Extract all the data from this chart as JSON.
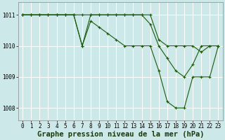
{
  "background_color": "#cce8e8",
  "grid_color": "#ffffff",
  "line_color": "#1a5c0a",
  "xlabel": "Graphe pression niveau de la mer (hPa)",
  "ylim": [
    1007.6,
    1011.4
  ],
  "xlim": [
    -0.5,
    23.5
  ],
  "yticks": [
    1008,
    1009,
    1010,
    1011
  ],
  "xticks": [
    0,
    1,
    2,
    3,
    4,
    5,
    6,
    7,
    8,
    9,
    10,
    11,
    12,
    13,
    14,
    15,
    16,
    17,
    18,
    19,
    20,
    21,
    22,
    23
  ],
  "series": [
    [
      1011.0,
      1011.0,
      1011.0,
      1011.0,
      1011.0,
      1011.0,
      1011.0,
      1011.0,
      1011.0,
      1011.0,
      1011.0,
      1011.0,
      1011.0,
      1011.0,
      1011.0,
      1011.0,
      1010.2,
      1010.0,
      1010.0,
      1010.0,
      1010.0,
      1009.8,
      1010.0,
      1010.0
    ],
    [
      1011.0,
      1011.0,
      1011.0,
      1011.0,
      1011.0,
      1011.0,
      1011.0,
      1010.0,
      1011.0,
      1011.0,
      1011.0,
      1011.0,
      1011.0,
      1011.0,
      1011.0,
      1010.7,
      1010.0,
      1009.6,
      1009.2,
      1009.0,
      1009.4,
      1010.0,
      1010.0,
      1010.0
    ],
    [
      1011.0,
      1011.0,
      1011.0,
      1011.0,
      1011.0,
      1011.0,
      1011.0,
      1010.0,
      1010.8,
      1010.6,
      1010.4,
      1010.2,
      1010.0,
      1010.0,
      1010.0,
      1010.0,
      1009.2,
      1008.2,
      1008.0,
      1008.0,
      1009.0,
      1009.0,
      1009.0,
      1010.0
    ]
  ],
  "tick_fontsize": 5.5,
  "label_fontsize": 7.5,
  "linewidth": 0.8,
  "markersize": 2.5
}
